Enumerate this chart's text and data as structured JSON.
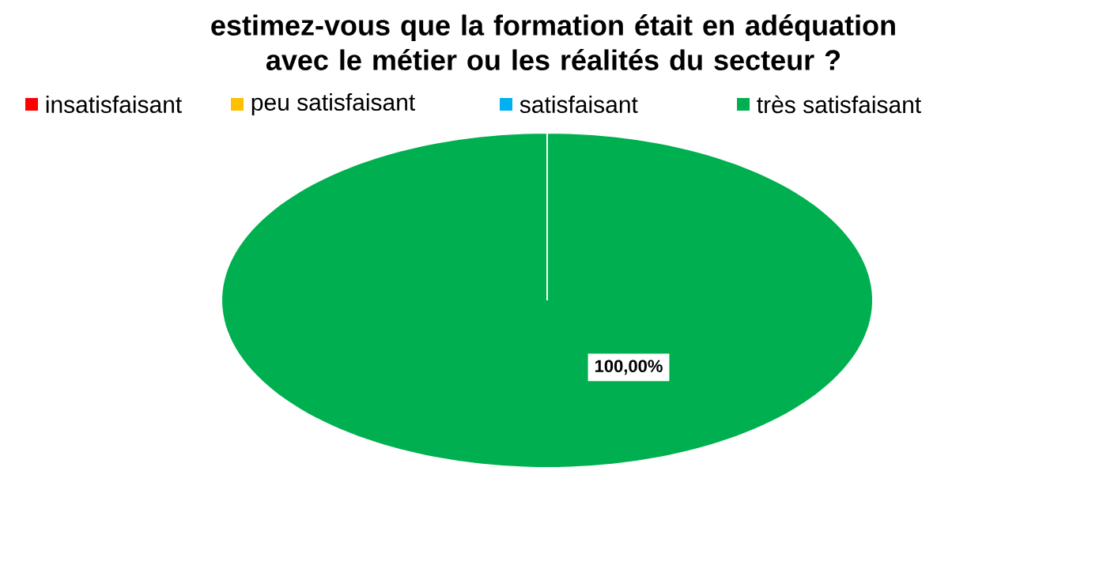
{
  "chart_data": {
    "type": "pie",
    "title": "estimez-vous que la formation était en adéquation avec le métier ou les réalités du secteur ?",
    "categories": [
      "insatisfaisant",
      "peu satisfaisant",
      "satisfaisant",
      "très satisfaisant"
    ],
    "values": [
      0,
      0,
      0,
      100
    ],
    "colors": [
      "#ff0000",
      "#ffc000",
      "#00b0f0",
      "#00b050"
    ],
    "value_labels": [
      null,
      null,
      null,
      "100,00%"
    ],
    "legend": "top"
  }
}
